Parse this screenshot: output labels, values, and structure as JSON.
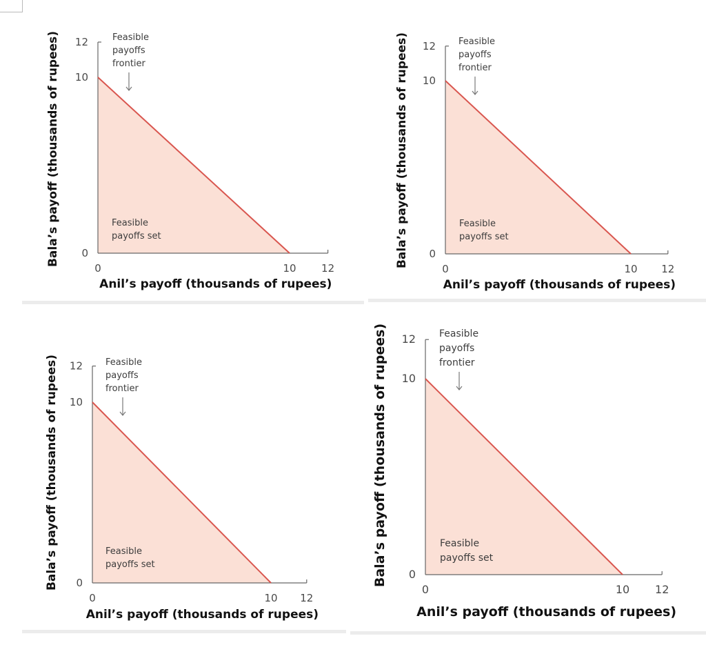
{
  "colors": {
    "fill": "#fbe0d6",
    "frontier": "#d9564f",
    "axis": "#666666",
    "arrow": "#777777"
  },
  "chart_data": [
    {
      "type": "area",
      "title": "",
      "xlabel": "Anil’s payoff (thousands of rupees)",
      "ylabel": "Bala’s payoff (thousands of rupees)",
      "xlim": [
        0,
        12
      ],
      "ylim": [
        0,
        12
      ],
      "xticks": [
        0,
        10,
        12
      ],
      "yticks": [
        0,
        10,
        12
      ],
      "frontier": [
        [
          0,
          10
        ],
        [
          10,
          0
        ]
      ],
      "annotations": [
        {
          "name": "frontier-label",
          "lines": [
            "Feasible",
            "payoffs",
            "frontier"
          ]
        },
        {
          "name": "set-label",
          "lines": [
            "Feasible",
            "payoffs set"
          ]
        }
      ]
    },
    {
      "type": "area",
      "title": "",
      "xlabel": "Anil’s payoff (thousands of rupees)",
      "ylabel": "Bala’s payoff (thousands of rupees)",
      "xlim": [
        0,
        12
      ],
      "ylim": [
        0,
        12
      ],
      "xticks": [
        0,
        10,
        12
      ],
      "yticks": [
        0,
        10,
        12
      ],
      "frontier": [
        [
          0,
          10
        ],
        [
          10,
          0
        ]
      ],
      "annotations": [
        {
          "name": "frontier-label",
          "lines": [
            "Feasible",
            "payoffs",
            "frontier"
          ]
        },
        {
          "name": "set-label",
          "lines": [
            "Feasible",
            "payoffs set"
          ]
        }
      ]
    },
    {
      "type": "area",
      "title": "",
      "xlabel": "Anil’s payoff (thousands of rupees)",
      "ylabel": "Bala’s payoff (thousands of rupees)",
      "xlim": [
        0,
        12
      ],
      "ylim": [
        0,
        12
      ],
      "xticks": [
        0,
        10,
        12
      ],
      "yticks": [
        0,
        10,
        12
      ],
      "frontier": [
        [
          0,
          10
        ],
        [
          10,
          0
        ]
      ],
      "annotations": [
        {
          "name": "frontier-label",
          "lines": [
            "Feasible",
            "payoffs",
            "frontier"
          ]
        },
        {
          "name": "set-label",
          "lines": [
            "Feasible",
            "payoffs set"
          ]
        }
      ]
    },
    {
      "type": "area",
      "title": "",
      "xlabel": "Anil’s payoff (thousands of rupees)",
      "ylabel": "Bala’s payoff (thousands of rupees)",
      "xlim": [
        0,
        12
      ],
      "ylim": [
        0,
        12
      ],
      "xticks": [
        0,
        10,
        12
      ],
      "yticks": [
        0,
        10,
        12
      ],
      "frontier": [
        [
          0,
          10
        ],
        [
          10,
          0
        ]
      ],
      "annotations": [
        {
          "name": "frontier-label",
          "lines": [
            "Feasible",
            "payoffs",
            "frontier"
          ]
        },
        {
          "name": "set-label",
          "lines": [
            "Feasible",
            "payoffs set"
          ]
        }
      ]
    }
  ]
}
